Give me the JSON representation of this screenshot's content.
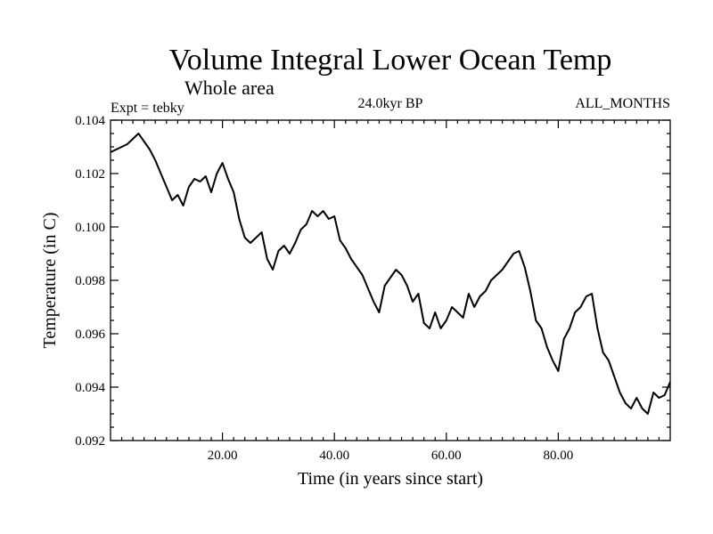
{
  "chart_data": {
    "type": "line",
    "title": "Volume Integral Lower Ocean Temp",
    "subtitle": "Whole area",
    "experiment": "Expt = tebky",
    "period": "24.0kyr BP",
    "season": "ALL_MONTHS",
    "xlabel": "Time (in years since start)",
    "ylabel": "Temperature (in C)",
    "xlim": [
      0,
      100
    ],
    "ylim": [
      0.092,
      0.104
    ],
    "xticks": [
      20,
      40,
      60,
      80
    ],
    "xtick_labels": [
      "20.00",
      "40.00",
      "60.00",
      "80.00"
    ],
    "yticks": [
      0.092,
      0.094,
      0.096,
      0.098,
      0.1,
      0.102,
      0.104
    ],
    "ytick_labels": [
      "0.092",
      "0.094",
      "0.096",
      "0.098",
      "0.100",
      "0.102",
      "0.104"
    ],
    "line_color": "#000000",
    "series": [
      {
        "name": "Volume Integral Lower Ocean Temp",
        "x": [
          0,
          1,
          2,
          3,
          4,
          5,
          6,
          7,
          8,
          9,
          10,
          11,
          12,
          13,
          14,
          15,
          16,
          17,
          18,
          19,
          20,
          21,
          22,
          23,
          24,
          25,
          26,
          27,
          28,
          29,
          30,
          31,
          32,
          33,
          34,
          35,
          36,
          37,
          38,
          39,
          40,
          41,
          42,
          43,
          44,
          45,
          46,
          47,
          48,
          49,
          50,
          51,
          52,
          53,
          54,
          55,
          56,
          57,
          58,
          59,
          60,
          61,
          62,
          63,
          64,
          65,
          66,
          67,
          68,
          69,
          70,
          71,
          72,
          73,
          74,
          75,
          76,
          77,
          78,
          79,
          80,
          81,
          82,
          83,
          84,
          85,
          86,
          87,
          88,
          89,
          90,
          91,
          92,
          93,
          94,
          95,
          96,
          97,
          98,
          99,
          100
        ],
        "values": [
          0.1028,
          0.1029,
          0.103,
          0.1031,
          0.1033,
          0.1035,
          0.1032,
          0.1029,
          0.1025,
          0.102,
          0.1015,
          0.101,
          0.1012,
          0.1008,
          0.1015,
          0.1018,
          0.1017,
          0.1019,
          0.1013,
          0.102,
          0.1024,
          0.1018,
          0.1013,
          0.1003,
          0.0996,
          0.0994,
          0.0996,
          0.0998,
          0.0988,
          0.0984,
          0.0991,
          0.0993,
          0.099,
          0.0994,
          0.0999,
          0.1001,
          0.1006,
          0.1004,
          0.1006,
          0.1003,
          0.1004,
          0.0995,
          0.0992,
          0.0988,
          0.0985,
          0.0982,
          0.0977,
          0.0972,
          0.0968,
          0.0978,
          0.0981,
          0.0984,
          0.0982,
          0.0978,
          0.0972,
          0.0975,
          0.0964,
          0.0962,
          0.0968,
          0.0962,
          0.0965,
          0.097,
          0.0968,
          0.0966,
          0.0975,
          0.097,
          0.0974,
          0.0976,
          0.098,
          0.0982,
          0.0984,
          0.0987,
          0.099,
          0.0991,
          0.0985,
          0.0976,
          0.0965,
          0.0962,
          0.0955,
          0.095,
          0.0946,
          0.0958,
          0.0962,
          0.0968,
          0.097,
          0.0974,
          0.0975,
          0.0962,
          0.0953,
          0.095,
          0.0944,
          0.0938,
          0.0934,
          0.0932,
          0.0936,
          0.0932,
          0.093,
          0.0938,
          0.0936,
          0.0937,
          0.0942
        ]
      }
    ]
  }
}
